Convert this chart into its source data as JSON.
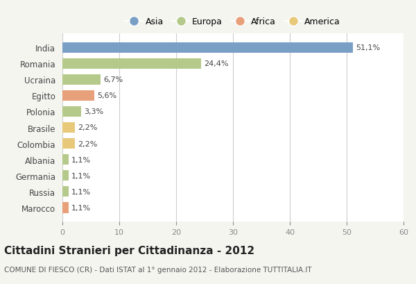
{
  "categories": [
    "India",
    "Romania",
    "Ucraina",
    "Egitto",
    "Polonia",
    "Brasile",
    "Colombia",
    "Albania",
    "Germania",
    "Russia",
    "Marocco"
  ],
  "values": [
    51.1,
    24.4,
    6.7,
    5.6,
    3.3,
    2.2,
    2.2,
    1.1,
    1.1,
    1.1,
    1.1
  ],
  "labels": [
    "51,1%",
    "24,4%",
    "6,7%",
    "5,6%",
    "3,3%",
    "2,2%",
    "2,2%",
    "1,1%",
    "1,1%",
    "1,1%",
    "1,1%"
  ],
  "colors": [
    "#7a9fc4",
    "#b5c98a",
    "#b5c98a",
    "#e8a07a",
    "#b5c98a",
    "#e8c97a",
    "#e8c97a",
    "#b5c98a",
    "#b5c98a",
    "#b5c98a",
    "#e8a07a"
  ],
  "legend_labels": [
    "Asia",
    "Europa",
    "Africa",
    "America"
  ],
  "legend_colors": [
    "#7a9fc4",
    "#b5c98a",
    "#e8a07a",
    "#e8c97a"
  ],
  "title": "Cittadini Stranieri per Cittadinanza - 2012",
  "subtitle": "COMUNE DI FIESCO (CR) - Dati ISTAT al 1° gennaio 2012 - Elaborazione TUTTITALIA.IT",
  "xlim": [
    0,
    60
  ],
  "xticks": [
    0,
    10,
    20,
    30,
    40,
    50,
    60
  ],
  "background_color": "#f5f5f0",
  "bar_background": "#ffffff"
}
